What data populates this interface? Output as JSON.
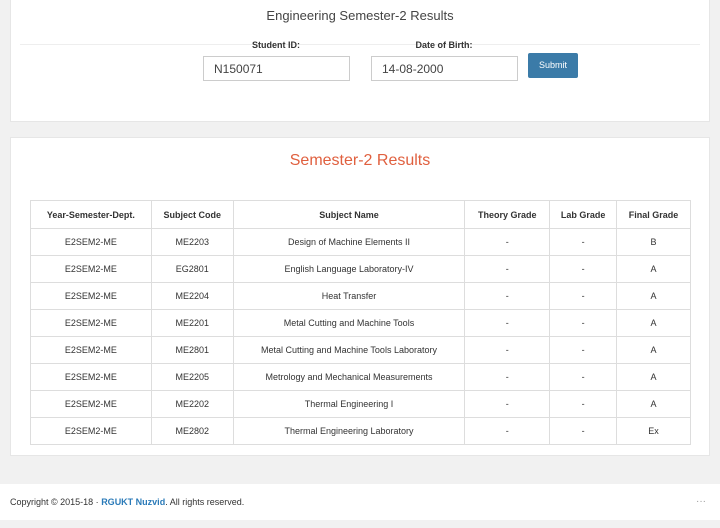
{
  "header": {
    "title": "Engineering Semester-2 Results"
  },
  "form": {
    "fields": [
      {
        "label": "Student ID:",
        "value": "N150071"
      },
      {
        "label": "Date of Birth:",
        "value": "14-08-2000"
      }
    ],
    "button": "Submit"
  },
  "results": {
    "title": "Semester-2 Results",
    "table": {
      "columns": [
        "Year-Semester-Dept.",
        "Subject Code",
        "Subject Name",
        "Theory Grade",
        "Lab Grade",
        "Final Grade"
      ],
      "rows": [
        [
          "E2SEM2-ME",
          "ME2203",
          "Design of Machine Elements II",
          "-",
          "-",
          "B"
        ],
        [
          "E2SEM2-ME",
          "EG2801",
          "English Language Laboratory-IV",
          "-",
          "-",
          "A"
        ],
        [
          "E2SEM2-ME",
          "ME2204",
          "Heat Transfer",
          "-",
          "-",
          "A"
        ],
        [
          "E2SEM2-ME",
          "ME2201",
          "Metal Cutting and Machine Tools",
          "-",
          "-",
          "A"
        ],
        [
          "E2SEM2-ME",
          "ME2801",
          "Metal Cutting and Machine Tools Laboratory",
          "-",
          "-",
          "A"
        ],
        [
          "E2SEM2-ME",
          "ME2205",
          "Metrology and Mechanical Measurements",
          "-",
          "-",
          "A"
        ],
        [
          "E2SEM2-ME",
          "ME2202",
          "Thermal Engineering I",
          "-",
          "-",
          "A"
        ],
        [
          "E2SEM2-ME",
          "ME2802",
          "Thermal Engineering Laboratory",
          "-",
          "-",
          "Ex"
        ]
      ]
    }
  },
  "footer": {
    "copyright": "Copyright © 2015-18 · ",
    "link": "RGUKT Nuzvid",
    "suffix": ". All rights reserved.",
    "menu": "···"
  }
}
